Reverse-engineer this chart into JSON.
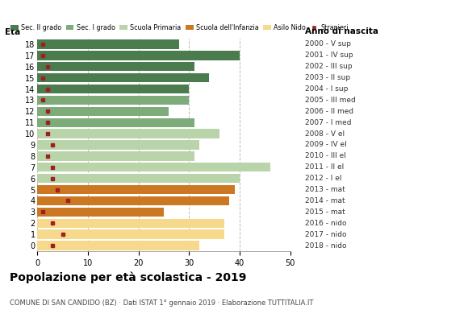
{
  "ages": [
    18,
    17,
    16,
    15,
    14,
    13,
    12,
    11,
    10,
    9,
    8,
    7,
    6,
    5,
    4,
    3,
    2,
    1,
    0
  ],
  "bar_values": [
    28,
    40,
    31,
    34,
    30,
    30,
    26,
    31,
    36,
    32,
    31,
    46,
    40,
    39,
    38,
    25,
    37,
    37,
    32
  ],
  "stranieri": [
    1,
    1,
    2,
    1,
    2,
    1,
    2,
    2,
    2,
    3,
    2,
    3,
    3,
    4,
    6,
    1,
    3,
    5,
    3
  ],
  "bar_colors": [
    "#4a7c4e",
    "#4a7c4e",
    "#4a7c4e",
    "#4a7c4e",
    "#4a7c4e",
    "#7dab7a",
    "#7dab7a",
    "#7dab7a",
    "#b8d4a8",
    "#b8d4a8",
    "#b8d4a8",
    "#b8d4a8",
    "#b8d4a8",
    "#cc7722",
    "#cc7722",
    "#cc7722",
    "#f7d98b",
    "#f7d98b",
    "#f7d98b"
  ],
  "right_labels": [
    "2000 - V sup",
    "2001 - IV sup",
    "2002 - III sup",
    "2003 - II sup",
    "2004 - I sup",
    "2005 - III med",
    "2006 - II med",
    "2007 - I med",
    "2008 - V el",
    "2009 - IV el",
    "2010 - III el",
    "2011 - II el",
    "2012 - I el",
    "2013 - mat",
    "2014 - mat",
    "2015 - mat",
    "2016 - nido",
    "2017 - nido",
    "2018 - nido"
  ],
  "legend_labels": [
    "Sec. II grado",
    "Sec. I grado",
    "Scuola Primaria",
    "Scuola dell'Infanzia",
    "Asilo Nido",
    "Stranieri"
  ],
  "legend_colors": [
    "#4a7c4e",
    "#7dab7a",
    "#b8d4a8",
    "#cc7722",
    "#f7d98b",
    "#a02020"
  ],
  "stranieri_color": "#a02020",
  "title": "Popolazione per età scolastica - 2019",
  "subtitle": "COMUNE DI SAN CANDIDO (BZ) · Dati ISTAT 1° gennaio 2019 · Elaborazione TUTTITALIA.IT",
  "xlabel_eta": "Età",
  "xlabel_anno": "Anno di nascita",
  "xlim": [
    0,
    50
  ],
  "xticks": [
    0,
    10,
    20,
    30,
    40,
    50
  ],
  "background_color": "#ffffff",
  "grid_color": "#bbbbbb"
}
